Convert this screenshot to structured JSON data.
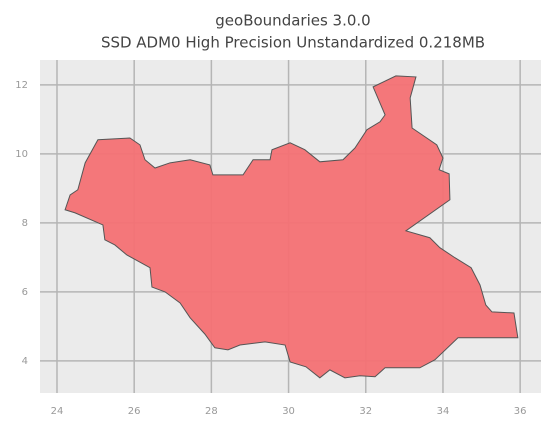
{
  "chart_data": {
    "type": "map",
    "title": "geoBoundaries 3.0.0",
    "subtitle": "SSD ADM0 High Precision Unstandardized 0.218MB",
    "xlim": [
      23.56,
      36.54
    ],
    "ylim": [
      3.07,
      12.72
    ],
    "xticks": [
      24,
      26,
      28,
      30,
      32,
      34,
      36
    ],
    "yticks": [
      4,
      6,
      8,
      10,
      12
    ],
    "grid": true,
    "series": [
      {
        "color": "#f47174",
        "x": [
          32.78,
          33.3,
          33.15,
          33.2,
          33.84,
          34.0,
          33.9,
          34.16,
          34.18,
          33.04,
          33.66,
          33.92,
          34.31,
          34.73,
          34.96,
          35.11,
          35.27,
          35.84,
          35.94,
          34.39,
          33.79,
          33.4,
          32.5,
          32.24,
          31.85,
          31.46,
          31.07,
          30.81,
          30.45,
          30.04,
          29.91,
          29.39,
          28.74,
          28.43,
          28.09,
          27.83,
          27.45,
          27.19,
          26.8,
          26.46,
          26.41,
          25.81,
          25.5,
          25.24,
          25.19,
          24.47,
          24.21,
          24.34,
          24.54,
          24.73,
          25.06,
          25.89,
          26.15,
          26.28,
          26.54,
          26.93,
          27.45,
          27.96,
          28.04,
          28.82,
          29.08,
          29.52,
          29.57,
          30.04,
          30.42,
          30.81,
          31.41,
          31.72,
          32.03,
          32.37,
          32.5,
          32.19
        ],
        "values": [
          12.26,
          12.23,
          11.62,
          10.75,
          10.26,
          9.88,
          9.54,
          9.42,
          8.67,
          7.77,
          7.57,
          7.28,
          6.99,
          6.7,
          6.2,
          5.62,
          5.42,
          5.39,
          4.67,
          4.67,
          4.03,
          3.8,
          3.8,
          3.54,
          3.57,
          3.51,
          3.74,
          3.51,
          3.83,
          3.97,
          4.46,
          4.55,
          4.46,
          4.32,
          4.38,
          4.78,
          5.25,
          5.68,
          6.0,
          6.14,
          6.7,
          7.07,
          7.36,
          7.51,
          7.94,
          8.29,
          8.38,
          8.81,
          8.96,
          9.74,
          10.41,
          10.46,
          10.26,
          9.83,
          9.59,
          9.74,
          9.83,
          9.68,
          9.39,
          9.39,
          9.83,
          9.83,
          10.12,
          10.32,
          10.12,
          9.77,
          9.83,
          10.17,
          10.7,
          10.93,
          11.13,
          11.94
        ]
      }
    ]
  }
}
